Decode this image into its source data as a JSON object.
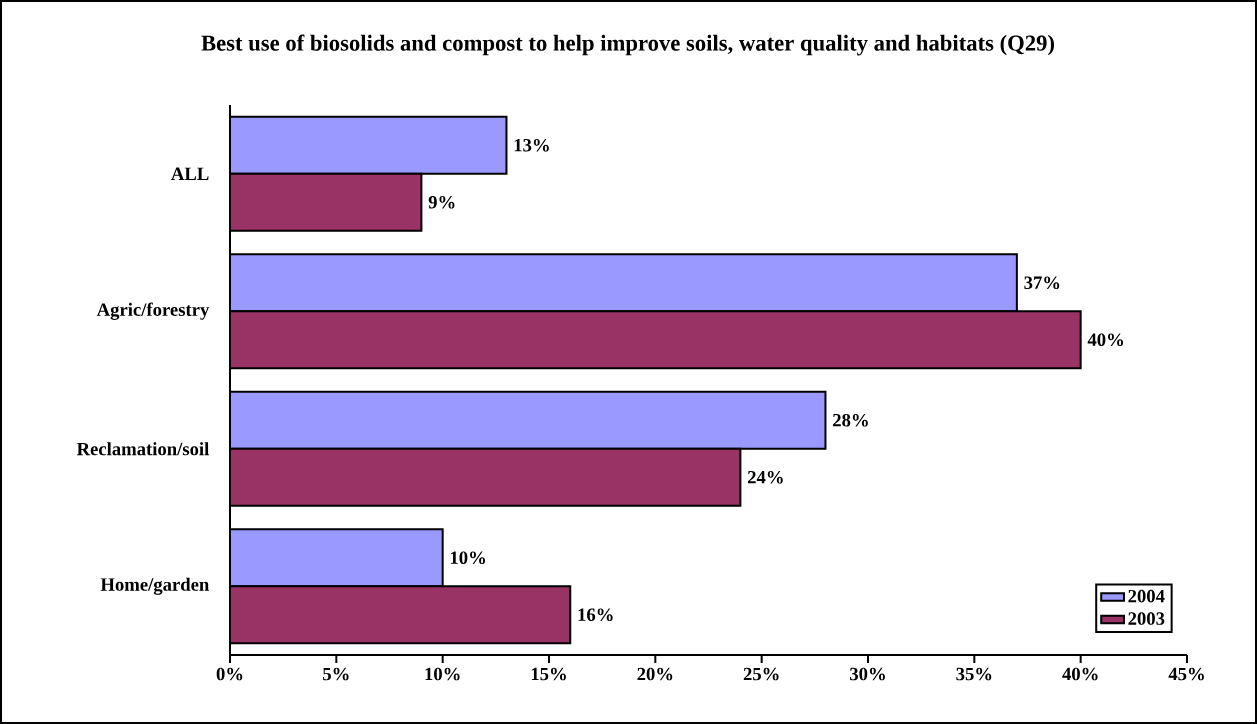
{
  "chart_data": {
    "type": "bar",
    "orientation": "horizontal",
    "title": "Best use of biosolids and compost to help improve soils, water quality and habitats (Q29)",
    "categories": [
      "ALL",
      "Agric/forestry",
      "Reclamation/soil",
      "Home/garden"
    ],
    "series": [
      {
        "name": "2004",
        "color": "#9999ff",
        "values": [
          13,
          37,
          28,
          10
        ],
        "value_labels": [
          "13%",
          "37%",
          "28%",
          "10%"
        ]
      },
      {
        "name": "2003",
        "color": "#993366",
        "values": [
          9,
          40,
          24,
          16
        ],
        "value_labels": [
          "9%",
          "40%",
          "24%",
          "16%"
        ]
      }
    ],
    "xlim": [
      0,
      45
    ],
    "xticks": [
      {
        "value": 0,
        "label": "0%"
      },
      {
        "value": 5,
        "label": "5%"
      },
      {
        "value": 10,
        "label": "10%"
      },
      {
        "value": 15,
        "label": "15%"
      },
      {
        "value": 20,
        "label": "20%"
      },
      {
        "value": 25,
        "label": "25%"
      },
      {
        "value": 30,
        "label": "30%"
      },
      {
        "value": 35,
        "label": "35%"
      },
      {
        "value": 40,
        "label": "40%"
      },
      {
        "value": 45,
        "label": "45%"
      }
    ],
    "legend": "bottom right"
  }
}
